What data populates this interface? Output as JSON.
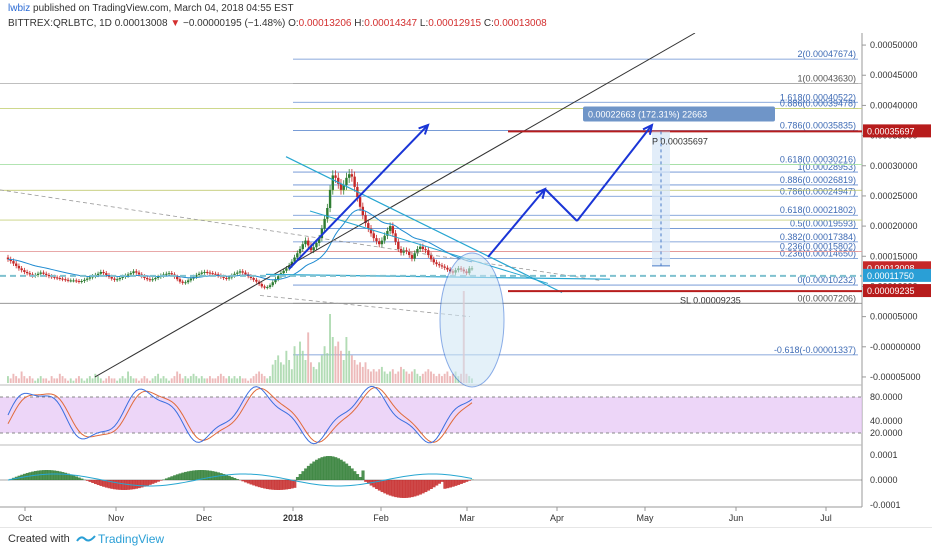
{
  "header": {
    "author": "lwbiz",
    "published_text": "published on TradingView.com, March 04, 2018 04:55 EST",
    "symbol": "BITTREX:QRLBTC, 1D",
    "last": "0.00013008",
    "change": "−0.00000195 (−1.48%)",
    "o_label": "O:",
    "o_value": "0.00013206",
    "h_label": "H:",
    "h_value": "0.00014347",
    "l_label": "L:",
    "l_value": "0.00012915",
    "c_label": "C:",
    "c_value": "0.00013008"
  },
  "footer": {
    "created_with": "Created with",
    "brand": "TradingView"
  },
  "colors": {
    "up": "#2e7d32",
    "down": "#c62828",
    "blue_arrow": "#1a35d6",
    "fib": "#4a7bc8",
    "trend_black": "#333333",
    "trend_cyan": "#26a6d1",
    "ema": "#1f8bd1",
    "stoch_bg": "#e7c8f5",
    "stoch_k": "#3b6fe0",
    "stoch_d": "#e06b3b",
    "highlight_red": "#b71c1c",
    "price_label": "#c62828",
    "teal_dash": "#7fc1cf"
  },
  "chart_data": [
    {
      "type": "candlestick",
      "title": "BITTREX:QRLBTC, 1D",
      "x_ticks": [
        "Oct",
        "Nov",
        "Dec",
        "2018",
        "Feb",
        "Mar",
        "Apr",
        "May",
        "Jun",
        "Jul"
      ],
      "y_ticks": [
        "0.00050000",
        "0.00045000",
        "0.00040000",
        "0.00035000",
        "0.00030000",
        "0.00025000",
        "0.00020000",
        "0.00015000",
        "0.00010000",
        "0.00005000",
        "-0.00000000",
        "-0.00005000"
      ],
      "ylim": [
        -6e-05,
        0.00052
      ],
      "close_series": [
        0.000145,
        0.000142,
        0.000138,
        0.000134,
        0.00013,
        0.000127,
        0.000124,
        0.000122,
        0.00012,
        0.000118,
        0.000119,
        0.000121,
        0.000123,
        0.000121,
        0.000119,
        0.000117,
        0.000116,
        0.000115,
        0.000114,
        0.000113,
        0.000112,
        0.000111,
        0.00011,
        0.00011,
        0.00011,
        0.000109,
        0.000108,
        0.000109,
        0.000111,
        0.000113,
        0.000115,
        0.000117,
        0.000119,
        0.000121,
        0.000124,
        0.000122,
        0.000119,
        0.000116,
        0.000113,
        0.000111,
        0.000112,
        0.000114,
        0.000116,
        0.000118,
        0.00012,
        0.000122,
        0.000125,
        0.000123,
        0.00012,
        0.000117,
        0.000114,
        0.000112,
        0.000111,
        0.000112,
        0.000114,
        0.000116,
        0.000118,
        0.00012,
        0.000121,
        0.000122,
        0.00012,
        0.000116,
        0.000112,
        0.000108,
        0.000106,
        0.000107,
        0.00011,
        0.000113,
        0.000116,
        0.000119,
        0.000121,
        0.000123,
        0.000124,
        0.000123,
        0.000122,
        0.000121,
        0.00012,
        0.000118,
        0.000116,
        0.000114,
        0.000113,
        0.000115,
        0.000118,
        0.000121,
        0.000123,
        0.000125,
        0.000123,
        0.00012,
        0.000117,
        0.000114,
        0.000111,
        0.000108,
        0.000104,
        0.0001,
        9.8e-05,
        9.9e-05,
        0.000102,
        0.000107,
        0.000112,
        0.000117,
        0.000122,
        0.000126,
        0.00013,
        0.000135,
        0.000141,
        0.000148,
        0.000155,
        0.000162,
        0.00017,
        0.000176,
        0.000168,
        0.00016,
        0.000165,
        0.000172,
        0.00018,
        0.000196,
        0.000212,
        0.00023,
        0.00026,
        0.000284,
        0.00028,
        0.00027,
        0.00026,
        0.000268,
        0.00028,
        0.000286,
        0.000282,
        0.000265,
        0.000248,
        0.000232,
        0.000218,
        0.000205,
        0.000196,
        0.000188,
        0.00018,
        0.000175,
        0.00017,
        0.000176,
        0.000184,
        0.000192,
        0.0002,
        0.000188,
        0.000174,
        0.000162,
        0.000156,
        0.00016,
        0.000158,
        0.000152,
        0.000146,
        0.000155,
        0.000162,
        0.000166,
        0.000162,
        0.00016,
        0.000152,
        0.000145,
        0.00014,
        0.000137,
        0.000135,
        0.000133,
        0.000131,
        0.000128,
        0.000125,
        0.000123,
        0.000127,
        0.00013,
        0.000128,
        0.000125,
        0.000122,
        0.00013,
        0.00013
      ],
      "volume_series": [
        3,
        2,
        4,
        3,
        2,
        5,
        3,
        2,
        3,
        2,
        1,
        2,
        3,
        2,
        2,
        1,
        3,
        2,
        2,
        4,
        3,
        2,
        1,
        2,
        1,
        2,
        3,
        2,
        1,
        2,
        3,
        2,
        4,
        3,
        2,
        1,
        2,
        3,
        2,
        2,
        1,
        2,
        3,
        2,
        5,
        3,
        2,
        2,
        1,
        2,
        3,
        2,
        1,
        2,
        3,
        4,
        2,
        3,
        2,
        1,
        2,
        3,
        5,
        4,
        2,
        3,
        2,
        3,
        4,
        3,
        2,
        3,
        2,
        2,
        3,
        2,
        2,
        3,
        4,
        3,
        2,
        3,
        2,
        3,
        2,
        3,
        2,
        2,
        1,
        2,
        3,
        4,
        5,
        4,
        3,
        2,
        3,
        8,
        10,
        12,
        9,
        8,
        14,
        10,
        6,
        16,
        12,
        18,
        14,
        10,
        22,
        9,
        7,
        6,
        9,
        12,
        16,
        13,
        30,
        20,
        16,
        18,
        14,
        10,
        20,
        14,
        12,
        10,
        8,
        9,
        7,
        9,
        6,
        5,
        6,
        5,
        6,
        7,
        5,
        4,
        5,
        6,
        4,
        5,
        7,
        6,
        5,
        4,
        5,
        6,
        4,
        3,
        4,
        5,
        6,
        5,
        4,
        3,
        4,
        3,
        4,
        5,
        3,
        4,
        5,
        3,
        4,
        40,
        4,
        3,
        2
      ]
    }
  ],
  "fib_levels": [
    {
      "label": "2(0.00047674)"
    },
    {
      "label": "1(0.00043630)"
    },
    {
      "label": "1.618(0.00040522)"
    },
    {
      "label": "0.886(0.00039478)"
    },
    {
      "label": "0.786(0.00035835)"
    },
    {
      "label": "0.618(0.00030216)"
    },
    {
      "label": "1(0.00028953)"
    },
    {
      "label": "0.886(0.00026819)"
    },
    {
      "label": "0.786(0.00024947)"
    },
    {
      "label": "0.618(0.00021802)"
    },
    {
      "label": "0.5(0.00019593)"
    },
    {
      "label": "0.382(0.00017384)"
    },
    {
      "label": "0.236(0.00015802)"
    },
    {
      "label": "0.236(0.00014650)"
    },
    {
      "label": "0(0.00010232)"
    },
    {
      "label": "0(0.00007206)"
    },
    {
      "label": "-0.618(-0.00001337)"
    }
  ],
  "annotations": {
    "measure_box": "0.00022663 (172.31%) 22663",
    "target": "P 0.00035697",
    "stop_loss": "SL 0.00009235"
  },
  "price_labels": {
    "target": "0.00035697",
    "current": "0.00013008",
    "teal": "0.00011750",
    "stop": "0.00009235"
  },
  "stoch_ticks": [
    "80.0000",
    "40.0000",
    "20.0000"
  ],
  "macd_ticks": [
    "0.0001",
    "0.0000",
    "-0.0001"
  ]
}
